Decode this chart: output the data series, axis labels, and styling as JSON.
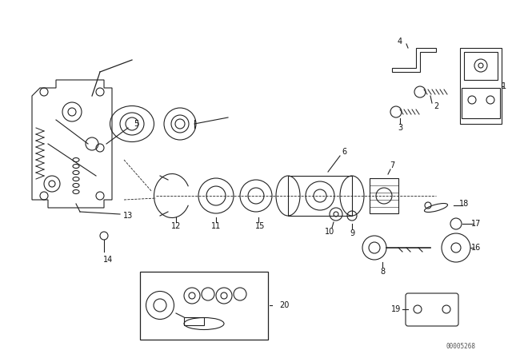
{
  "title": "",
  "background_color": "#ffffff",
  "part_numbers": [
    1,
    2,
    3,
    4,
    5,
    6,
    7,
    8,
    9,
    10,
    11,
    12,
    13,
    14,
    15,
    16,
    17,
    18,
    19,
    20
  ],
  "watermark": "00005268",
  "fig_width": 6.4,
  "fig_height": 4.48,
  "dpi": 100
}
